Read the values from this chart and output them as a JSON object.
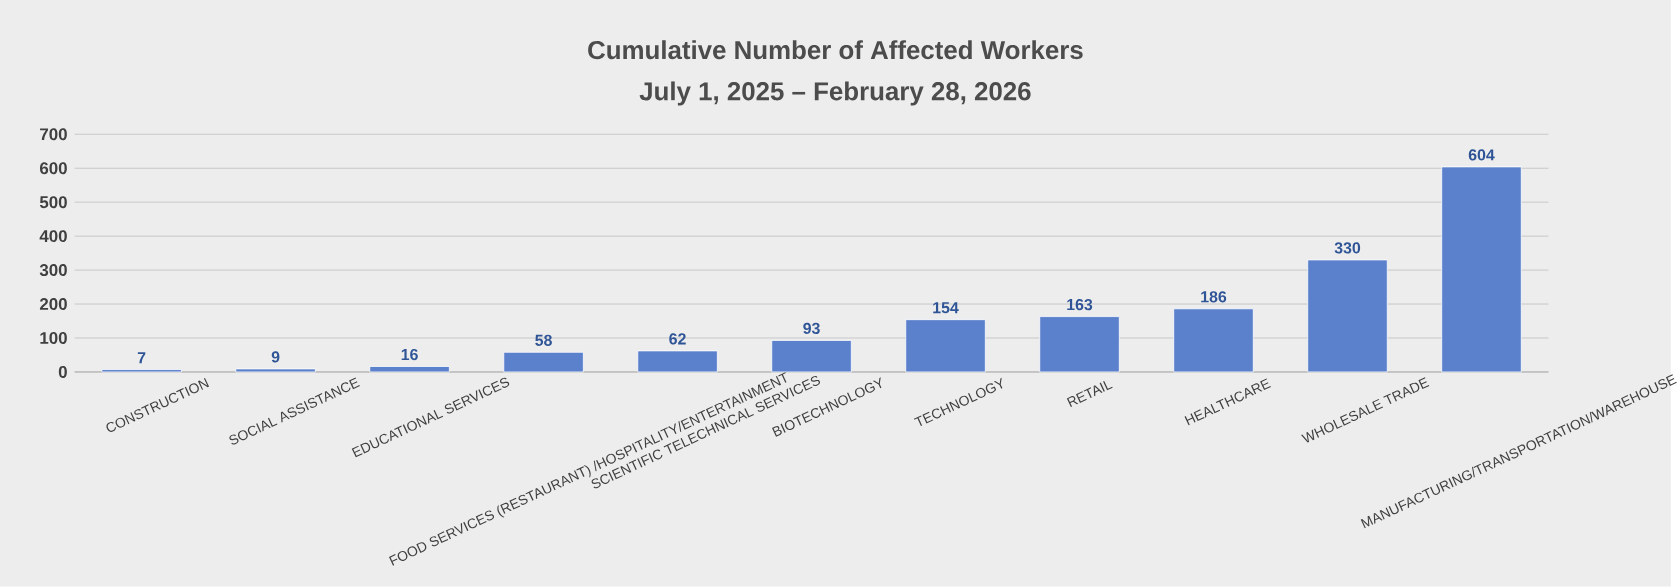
{
  "chart_data": {
    "type": "bar",
    "title": "Cumulative Number of Affected Workers",
    "subtitle": "July 1, 2025 – February 28, 2026",
    "categories": [
      "CONSTRUCTION",
      "SOCIAL ASSISTANCE",
      "EDUCATIONAL SERVICES",
      "FOOD SERVICES (RESTAURANT) /HOSPITALITY/ENTERTAINMENT",
      "SCIENTIFIC TELECHNICAL SERVICES",
      "BIOTECHNOLOGY",
      "TECHNOLOGY",
      "RETAIL",
      "HEALTHCARE",
      "WHOLESALE TRADE",
      "MANUFACTURING/TRANSPORTATION/WAREHOUSE"
    ],
    "values": [
      7,
      9,
      16,
      58,
      62,
      93,
      154,
      163,
      186,
      330,
      604
    ],
    "color": "#5b80cc",
    "ylim": [
      0,
      700
    ],
    "yticks": [
      0,
      100,
      200,
      300,
      400,
      500,
      600,
      700
    ],
    "grid": "y",
    "data_labels": true
  }
}
